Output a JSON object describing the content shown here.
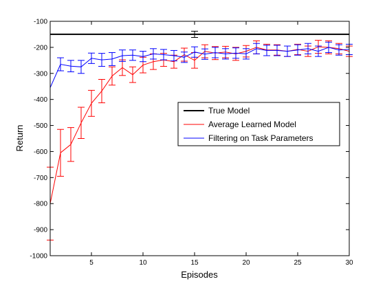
{
  "chart_data": {
    "type": "line",
    "xlabel": "Episodes",
    "ylabel": "Return",
    "xlim": [
      1,
      30
    ],
    "ylim": [
      -1000,
      -100
    ],
    "xticks": [
      5,
      10,
      15,
      20,
      25,
      30
    ],
    "yticks": [
      -1000,
      -900,
      -800,
      -700,
      -600,
      -500,
      -400,
      -300,
      -200,
      -100
    ],
    "grid": false,
    "legend_position": "center-right",
    "x": [
      1,
      2,
      3,
      4,
      5,
      6,
      7,
      8,
      9,
      10,
      11,
      12,
      13,
      14,
      15,
      16,
      17,
      18,
      19,
      20,
      21,
      22,
      23,
      24,
      25,
      26,
      27,
      28,
      29,
      30
    ],
    "series": [
      {
        "name": "True Model",
        "color": "#000000",
        "values": [
          -150,
          -150,
          -150,
          -150,
          -150,
          -150,
          -150,
          -150,
          -150,
          -150,
          -150,
          -150,
          -150,
          -150,
          -150,
          -150,
          -150,
          -150,
          -150,
          -150,
          -150,
          -150,
          -150,
          -150,
          -150,
          -150,
          -150,
          -150,
          -150,
          -150
        ],
        "error_bars": [
          {
            "x": 15,
            "y": -150,
            "err": 12
          }
        ]
      },
      {
        "name": "Average Learned Model",
        "color": "#ff0000",
        "values": [
          -800,
          -605,
          -573,
          -490,
          -415,
          -368,
          -310,
          -278,
          -305,
          -268,
          -255,
          -248,
          -255,
          -228,
          -250,
          -215,
          -222,
          -218,
          -225,
          -215,
          -200,
          -210,
          -210,
          -215,
          -208,
          -215,
          -198,
          -200,
          -205,
          -215
        ],
        "errors": [
          140,
          90,
          65,
          60,
          50,
          45,
          35,
          30,
          30,
          30,
          30,
          25,
          25,
          25,
          30,
          25,
          25,
          22,
          25,
          22,
          25,
          22,
          20,
          20,
          20,
          20,
          25,
          25,
          20,
          20
        ]
      },
      {
        "name": "Filtering on Task Parameters",
        "color": "#0000ff",
        "values": [
          -355,
          -265,
          -272,
          -275,
          -242,
          -248,
          -245,
          -232,
          -230,
          -235,
          -225,
          -228,
          -232,
          -238,
          -218,
          -226,
          -220,
          -225,
          -222,
          -225,
          -205,
          -212,
          -212,
          -215,
          -210,
          -205,
          -215,
          -200,
          -210,
          -208
        ],
        "errors": [
          0,
          25,
          22,
          25,
          20,
          25,
          25,
          22,
          20,
          20,
          20,
          20,
          20,
          20,
          20,
          20,
          20,
          20,
          20,
          20,
          20,
          20,
          20,
          20,
          20,
          20,
          20,
          20,
          20,
          20
        ]
      }
    ]
  }
}
